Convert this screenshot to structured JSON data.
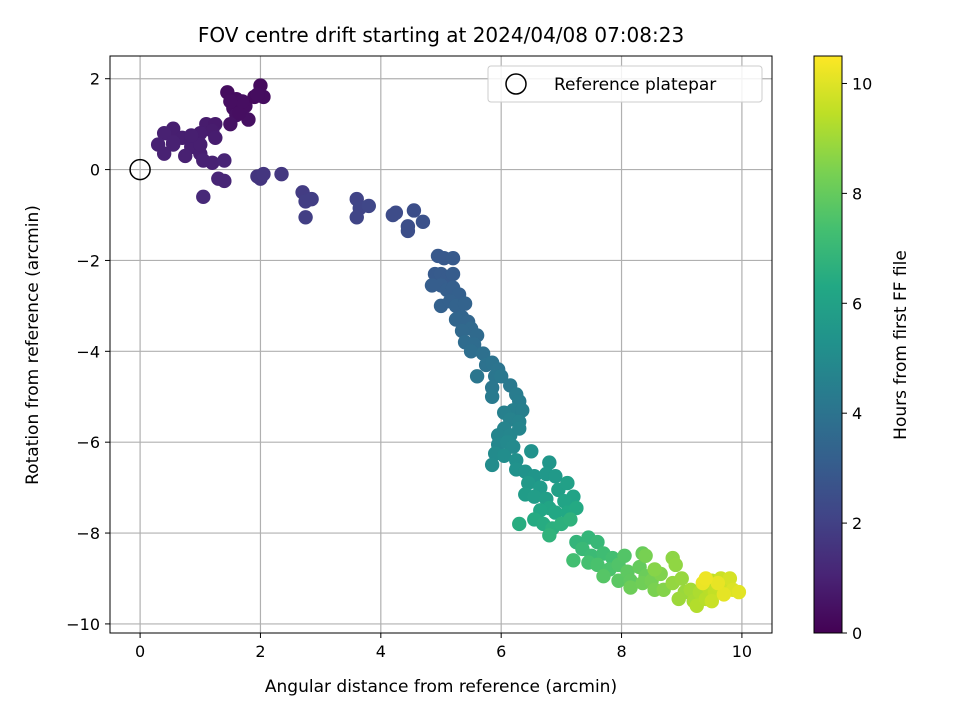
{
  "chart_data": {
    "type": "scatter",
    "title": "FOV centre drift starting at 2024/04/08 07:08:23",
    "xlabel": "Angular distance from reference (arcmin)",
    "ylabel": "Rotation from reference (arcmin)",
    "xlim": [
      -0.5,
      10.5
    ],
    "ylim": [
      -10.2,
      2.5
    ],
    "xticks": [
      0,
      2,
      4,
      6,
      8,
      10
    ],
    "yticks": [
      2,
      0,
      -2,
      -4,
      -6,
      -8,
      -10
    ],
    "xtick_labels": [
      "0",
      "2",
      "4",
      "6",
      "8",
      "10"
    ],
    "ytick_labels": [
      "2",
      "0",
      "−2",
      "−4",
      "−6",
      "−8",
      "−10"
    ],
    "grid": true,
    "legend": {
      "position": "top-right",
      "entries": [
        {
          "label": "Reference platepar",
          "marker": "open-circle",
          "color": "#000000"
        }
      ]
    },
    "reference_point": {
      "x": 0,
      "y": 0
    },
    "colorbar": {
      "label": "Hours from first FF file",
      "colormap": "viridis",
      "range": [
        0,
        10.5
      ],
      "ticks": [
        0,
        2,
        4,
        6,
        8,
        10
      ],
      "tick_labels": [
        "0",
        "2",
        "4",
        "6",
        "8",
        "10"
      ]
    },
    "series": [
      {
        "marker": "filled-circle",
        "color_by": "hours",
        "points": [
          [
            1.45,
            1.7,
            0.35
          ],
          [
            1.6,
            1.55,
            0.35
          ],
          [
            1.75,
            1.4,
            0.4
          ],
          [
            1.55,
            1.35,
            0.4
          ],
          [
            1.9,
            1.6,
            0.3
          ],
          [
            2.0,
            1.85,
            0.3
          ],
          [
            2.05,
            1.6,
            0.35
          ],
          [
            1.6,
            1.2,
            0.45
          ],
          [
            1.8,
            1.1,
            0.45
          ],
          [
            1.5,
            1.0,
            0.5
          ],
          [
            1.65,
            1.25,
            0.4
          ],
          [
            1.7,
            1.5,
            0.4
          ],
          [
            1.95,
            1.65,
            0.35
          ],
          [
            1.5,
            1.5,
            0.4
          ],
          [
            0.55,
            0.9,
            0.9
          ],
          [
            0.4,
            0.8,
            0.95
          ],
          [
            0.7,
            0.7,
            0.9
          ],
          [
            0.85,
            0.65,
            0.9
          ],
          [
            1.1,
            1.0,
            0.8
          ],
          [
            1.25,
            1.0,
            0.75
          ],
          [
            1.2,
            0.85,
            0.8
          ],
          [
            1.0,
            0.8,
            0.85
          ],
          [
            0.85,
            0.5,
            0.9
          ],
          [
            1.0,
            0.35,
            0.9
          ],
          [
            0.75,
            0.3,
            0.95
          ],
          [
            0.4,
            0.35,
            1.0
          ],
          [
            0.3,
            0.55,
            1.0
          ],
          [
            0.55,
            0.55,
            1.0
          ],
          [
            1.0,
            0.55,
            0.9
          ],
          [
            1.25,
            0.7,
            0.85
          ],
          [
            1.05,
            0.2,
            1.0
          ],
          [
            1.2,
            0.15,
            1.0
          ],
          [
            1.4,
            0.2,
            1.05
          ],
          [
            1.3,
            -0.2,
            1.1
          ],
          [
            1.4,
            -0.25,
            1.1
          ],
          [
            1.05,
            -0.6,
            1.2
          ],
          [
            0.85,
            0.75,
            0.9
          ],
          [
            0.55,
            0.6,
            0.95
          ],
          [
            1.95,
            -0.15,
            1.6
          ],
          [
            2.0,
            -0.2,
            1.6
          ],
          [
            2.05,
            -0.1,
            1.65
          ],
          [
            2.35,
            -0.1,
            1.7
          ],
          [
            2.7,
            -0.5,
            1.85
          ],
          [
            2.75,
            -0.7,
            1.9
          ],
          [
            2.85,
            -0.65,
            1.9
          ],
          [
            2.75,
            -1.05,
            1.95
          ],
          [
            3.6,
            -0.65,
            2.1
          ],
          [
            3.65,
            -0.85,
            2.15
          ],
          [
            3.6,
            -1.05,
            2.15
          ],
          [
            3.8,
            -0.8,
            2.2
          ],
          [
            4.2,
            -1.0,
            2.4
          ],
          [
            4.25,
            -0.95,
            2.4
          ],
          [
            4.45,
            -1.25,
            2.5
          ],
          [
            4.45,
            -1.35,
            2.5
          ],
          [
            4.55,
            -0.9,
            2.5
          ],
          [
            4.7,
            -1.15,
            2.6
          ],
          [
            4.95,
            -1.9,
            2.9
          ],
          [
            5.05,
            -1.95,
            2.9
          ],
          [
            5.2,
            -1.95,
            2.95
          ],
          [
            4.9,
            -2.3,
            2.95
          ],
          [
            5.0,
            -2.3,
            3.0
          ],
          [
            5.1,
            -2.4,
            3.0
          ],
          [
            5.2,
            -2.3,
            3.05
          ],
          [
            5.0,
            -2.55,
            3.1
          ],
          [
            4.85,
            -2.55,
            3.1
          ],
          [
            5.1,
            -2.65,
            3.15
          ],
          [
            5.2,
            -2.6,
            3.15
          ],
          [
            5.3,
            -2.75,
            3.2
          ],
          [
            5.0,
            -3.0,
            3.25
          ],
          [
            5.15,
            -2.9,
            3.25
          ],
          [
            5.25,
            -3.0,
            3.3
          ],
          [
            5.4,
            -2.95,
            3.3
          ],
          [
            5.35,
            -3.25,
            3.4
          ],
          [
            5.25,
            -3.3,
            3.45
          ],
          [
            5.45,
            -3.35,
            3.45
          ],
          [
            5.5,
            -3.5,
            3.55
          ],
          [
            5.35,
            -3.55,
            3.55
          ],
          [
            5.6,
            -3.65,
            3.6
          ],
          [
            5.4,
            -3.8,
            3.7
          ],
          [
            5.55,
            -3.85,
            3.7
          ],
          [
            5.5,
            -4.0,
            3.8
          ],
          [
            5.7,
            -4.05,
            3.85
          ],
          [
            5.75,
            -4.3,
            3.95
          ],
          [
            5.85,
            -4.25,
            4.0
          ],
          [
            5.95,
            -4.4,
            4.05
          ],
          [
            5.9,
            -4.55,
            4.1
          ],
          [
            5.6,
            -4.55,
            4.1
          ],
          [
            5.85,
            -4.8,
            4.15
          ],
          [
            6.0,
            -4.55,
            4.2
          ],
          [
            6.15,
            -4.75,
            4.25
          ],
          [
            5.85,
            -5.0,
            4.3
          ],
          [
            6.25,
            -4.95,
            4.35
          ],
          [
            6.3,
            -5.1,
            4.4
          ],
          [
            6.2,
            -5.3,
            4.5
          ],
          [
            6.35,
            -5.3,
            4.5
          ],
          [
            6.05,
            -5.35,
            4.55
          ],
          [
            6.15,
            -5.5,
            4.6
          ],
          [
            6.3,
            -5.55,
            4.65
          ],
          [
            6.05,
            -5.7,
            4.7
          ],
          [
            5.95,
            -5.85,
            4.75
          ],
          [
            6.15,
            -5.85,
            4.8
          ],
          [
            6.3,
            -5.7,
            4.75
          ],
          [
            5.95,
            -6.05,
            4.85
          ],
          [
            6.1,
            -6.0,
            4.9
          ],
          [
            6.2,
            -6.1,
            4.95
          ],
          [
            5.9,
            -6.25,
            5.0
          ],
          [
            5.85,
            -6.5,
            5.05
          ],
          [
            6.05,
            -6.3,
            5.1
          ],
          [
            6.25,
            -6.4,
            5.2
          ],
          [
            6.5,
            -6.2,
            5.3
          ],
          [
            6.25,
            -6.6,
            5.3
          ],
          [
            6.4,
            -6.65,
            5.35
          ],
          [
            6.55,
            -6.75,
            5.45
          ],
          [
            6.8,
            -6.45,
            5.5
          ],
          [
            6.75,
            -6.7,
            5.55
          ],
          [
            6.9,
            -6.75,
            5.6
          ],
          [
            6.45,
            -6.9,
            5.6
          ],
          [
            6.65,
            -7.0,
            5.7
          ],
          [
            6.4,
            -7.15,
            5.75
          ],
          [
            6.55,
            -7.2,
            5.8
          ],
          [
            6.75,
            -7.25,
            5.85
          ],
          [
            6.95,
            -7.05,
            5.9
          ],
          [
            7.1,
            -6.9,
            5.95
          ],
          [
            7.2,
            -7.2,
            6.05
          ],
          [
            7.05,
            -7.3,
            6.1
          ],
          [
            6.8,
            -7.45,
            6.15
          ],
          [
            6.65,
            -7.5,
            6.2
          ],
          [
            6.9,
            -7.55,
            6.25
          ],
          [
            7.1,
            -7.55,
            6.3
          ],
          [
            7.25,
            -7.45,
            6.35
          ],
          [
            6.55,
            -7.7,
            6.4
          ],
          [
            6.7,
            -7.8,
            6.45
          ],
          [
            6.3,
            -7.8,
            6.5
          ],
          [
            6.85,
            -7.9,
            6.6
          ],
          [
            7.0,
            -7.8,
            6.65
          ],
          [
            7.15,
            -7.7,
            6.7
          ],
          [
            6.8,
            -8.05,
            6.75
          ],
          [
            7.25,
            -8.2,
            6.85
          ],
          [
            7.45,
            -8.1,
            6.9
          ],
          [
            7.6,
            -8.2,
            7.0
          ],
          [
            7.35,
            -8.35,
            7.05
          ],
          [
            7.5,
            -8.5,
            7.1
          ],
          [
            7.7,
            -8.45,
            7.2
          ],
          [
            7.85,
            -8.55,
            7.3
          ],
          [
            7.2,
            -8.6,
            7.3
          ],
          [
            7.45,
            -8.65,
            7.35
          ],
          [
            7.6,
            -8.7,
            7.45
          ],
          [
            7.8,
            -8.8,
            7.5
          ],
          [
            7.95,
            -8.7,
            7.6
          ],
          [
            8.05,
            -8.5,
            7.65
          ],
          [
            7.7,
            -8.95,
            7.7
          ],
          [
            7.95,
            -9.05,
            7.8
          ],
          [
            8.1,
            -8.85,
            7.85
          ],
          [
            8.15,
            -9.05,
            7.9
          ],
          [
            8.3,
            -8.75,
            8.0
          ],
          [
            8.35,
            -8.45,
            8.05
          ],
          [
            8.4,
            -8.95,
            8.1
          ],
          [
            8.15,
            -9.2,
            8.15
          ],
          [
            8.35,
            -9.1,
            8.2
          ],
          [
            8.5,
            -9.05,
            8.3
          ],
          [
            8.4,
            -8.5,
            8.35
          ],
          [
            8.55,
            -9.25,
            8.4
          ],
          [
            8.65,
            -8.9,
            8.5
          ],
          [
            8.7,
            -9.25,
            8.55
          ],
          [
            8.55,
            -8.8,
            8.6
          ],
          [
            8.85,
            -8.55,
            8.7
          ],
          [
            8.9,
            -8.7,
            8.75
          ],
          [
            8.85,
            -9.1,
            8.8
          ],
          [
            9.0,
            -9.0,
            8.85
          ],
          [
            9.05,
            -9.3,
            8.9
          ],
          [
            8.95,
            -9.45,
            8.95
          ],
          [
            9.15,
            -9.25,
            9.05
          ],
          [
            9.2,
            -9.5,
            9.1
          ],
          [
            9.3,
            -9.3,
            9.2
          ],
          [
            9.25,
            -9.6,
            9.3
          ],
          [
            9.4,
            -9.45,
            9.35
          ],
          [
            9.45,
            -9.2,
            9.4
          ],
          [
            9.5,
            -9.05,
            9.5
          ],
          [
            9.55,
            -9.3,
            9.55
          ],
          [
            9.6,
            -9.15,
            9.6
          ],
          [
            9.5,
            -9.5,
            9.65
          ],
          [
            9.65,
            -9.0,
            9.7
          ],
          [
            9.75,
            -9.1,
            9.75
          ],
          [
            9.8,
            -9.0,
            9.85
          ],
          [
            9.85,
            -9.25,
            9.95
          ],
          [
            9.95,
            -9.3,
            10.05
          ],
          [
            9.7,
            -9.35,
            10.1
          ],
          [
            9.6,
            -9.1,
            10.15
          ],
          [
            9.35,
            -9.1,
            10.2
          ],
          [
            9.4,
            -9.0,
            10.25
          ]
        ]
      }
    ]
  }
}
